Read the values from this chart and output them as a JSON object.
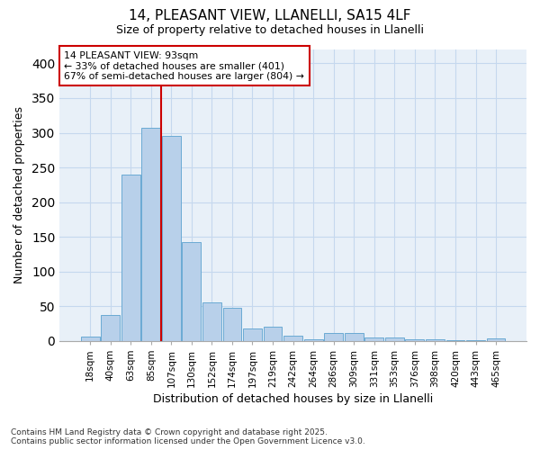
{
  "title_line1": "14, PLEASANT VIEW, LLANELLI, SA15 4LF",
  "title_line2": "Size of property relative to detached houses in Llanelli",
  "xlabel": "Distribution of detached houses by size in Llanelli",
  "ylabel": "Number of detached properties",
  "categories": [
    "18sqm",
    "40sqm",
    "63sqm",
    "85sqm",
    "107sqm",
    "130sqm",
    "152sqm",
    "174sqm",
    "197sqm",
    "219sqm",
    "242sqm",
    "264sqm",
    "286sqm",
    "309sqm",
    "331sqm",
    "353sqm",
    "376sqm",
    "398sqm",
    "420sqm",
    "443sqm",
    "465sqm"
  ],
  "values": [
    7,
    38,
    240,
    307,
    295,
    143,
    55,
    48,
    18,
    20,
    8,
    3,
    11,
    11,
    5,
    5,
    2,
    3,
    1,
    1,
    4
  ],
  "bar_color": "#b8d0ea",
  "bar_edge_color": "#6aaad4",
  "grid_color": "#c5d8ee",
  "background_color": "#ffffff",
  "plot_bg_color": "#e8f0f8",
  "annotation_box_color": "#ffffff",
  "annotation_border_color": "#cc0000",
  "red_line_x": 3.5,
  "annotation_text_line1": "14 PLEASANT VIEW: 93sqm",
  "annotation_text_line2": "← 33% of detached houses are smaller (401)",
  "annotation_text_line3": "67% of semi-detached houses are larger (804) →",
  "ylim": [
    0,
    420
  ],
  "yticks": [
    0,
    50,
    100,
    150,
    200,
    250,
    300,
    350,
    400
  ],
  "footnote_line1": "Contains HM Land Registry data © Crown copyright and database right 2025.",
  "footnote_line2": "Contains public sector information licensed under the Open Government Licence v3.0.",
  "title1_fontsize": 11,
  "title2_fontsize": 9,
  "tick_fontsize": 7.5,
  "label_fontsize": 9,
  "annot_fontsize": 7.8,
  "footnote_fontsize": 6.5
}
